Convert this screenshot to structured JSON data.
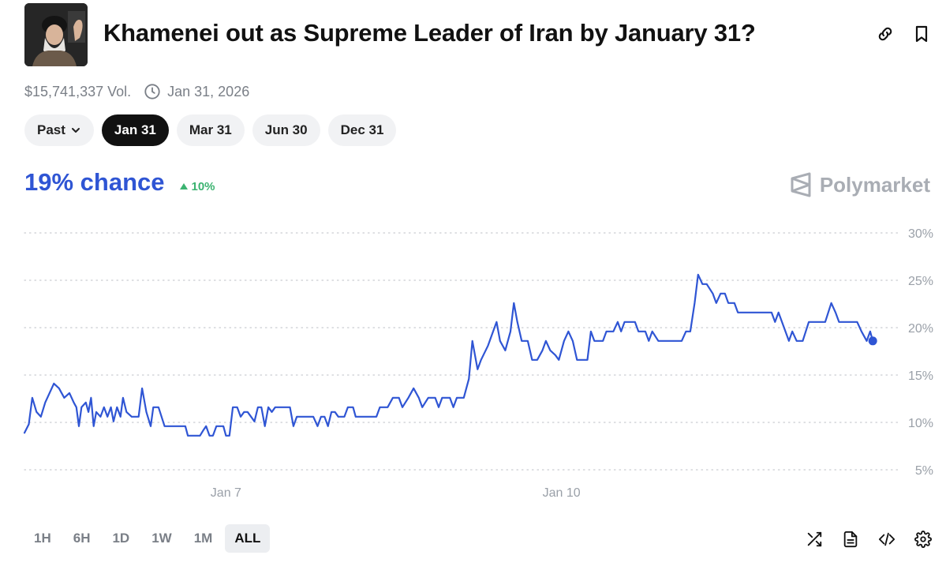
{
  "header": {
    "title": "Khamenei out as Supreme Leader of Iran by January 31?",
    "avatar_icon": "portrait-avatar"
  },
  "meta": {
    "volume": "$15,741,337 Vol.",
    "end_date": "Jan 31, 2026"
  },
  "date_pills": {
    "past_label": "Past",
    "items": [
      "Jan 31",
      "Mar 31",
      "Jun 30",
      "Dec 31"
    ],
    "active": "Jan 31"
  },
  "outcome": {
    "chance": "19% chance",
    "change": "10%",
    "change_direction": "up"
  },
  "brand": {
    "name": "Polymarket"
  },
  "colors": {
    "line": "#2f55d4",
    "positive": "#3cb371",
    "muted": "#7a7f87"
  },
  "time_ranges": {
    "items": [
      "1H",
      "6H",
      "1D",
      "1W",
      "1M",
      "ALL"
    ],
    "active": "ALL"
  },
  "tool_icons": [
    "shuffle-icon",
    "document-icon",
    "code-icon",
    "gear-icon"
  ],
  "chart_data": {
    "type": "line",
    "y_ticks": [
      "30%",
      "25%",
      "20%",
      "15%",
      "10%",
      "5%"
    ],
    "y_tick_values": [
      30,
      25,
      20,
      15,
      10,
      5
    ],
    "ylim": [
      5,
      30
    ],
    "xlim": [
      0,
      100
    ],
    "x_ticks": [
      {
        "x": 23.3,
        "label": "Jan 7"
      },
      {
        "x": 62.1,
        "label": "Jan 10"
      }
    ],
    "grid": true,
    "series": [
      {
        "values": [
          [
            0,
            8.9
          ],
          [
            0.5,
            9.8
          ],
          [
            0.9,
            12.6
          ],
          [
            1.4,
            11.1
          ],
          [
            1.9,
            10.6
          ],
          [
            2.4,
            12.1
          ],
          [
            2.9,
            13.1
          ],
          [
            3.4,
            14.1
          ],
          [
            4.0,
            13.6
          ],
          [
            4.6,
            12.6
          ],
          [
            5.2,
            13.1
          ],
          [
            5.7,
            12.1
          ],
          [
            6.0,
            11.6
          ],
          [
            6.3,
            9.6
          ],
          [
            6.6,
            11.6
          ],
          [
            7.1,
            12.1
          ],
          [
            7.4,
            11.1
          ],
          [
            7.7,
            12.6
          ],
          [
            8.0,
            9.6
          ],
          [
            8.3,
            11.1
          ],
          [
            8.8,
            10.6
          ],
          [
            9.2,
            11.6
          ],
          [
            9.6,
            10.6
          ],
          [
            10.0,
            11.6
          ],
          [
            10.3,
            10.1
          ],
          [
            10.7,
            11.6
          ],
          [
            11.1,
            10.6
          ],
          [
            11.4,
            12.6
          ],
          [
            11.8,
            11.1
          ],
          [
            12.4,
            10.6
          ],
          [
            13.2,
            10.6
          ],
          [
            13.6,
            13.6
          ],
          [
            14.1,
            11.1
          ],
          [
            14.6,
            9.6
          ],
          [
            14.9,
            11.6
          ],
          [
            15.5,
            11.6
          ],
          [
            16.2,
            9.6
          ],
          [
            17.2,
            9.6
          ],
          [
            18.6,
            9.6
          ],
          [
            18.9,
            8.6
          ],
          [
            19.6,
            8.6
          ],
          [
            20.3,
            8.6
          ],
          [
            20.7,
            9.2
          ],
          [
            21.0,
            9.6
          ],
          [
            21.4,
            8.6
          ],
          [
            21.8,
            8.6
          ],
          [
            22.2,
            9.6
          ],
          [
            23.0,
            9.6
          ],
          [
            23.3,
            8.6
          ],
          [
            23.7,
            8.6
          ],
          [
            24.1,
            11.6
          ],
          [
            24.6,
            11.6
          ],
          [
            25.0,
            10.6
          ],
          [
            25.4,
            11.1
          ],
          [
            25.8,
            11.1
          ],
          [
            26.2,
            10.6
          ],
          [
            26.6,
            10.1
          ],
          [
            27.0,
            11.6
          ],
          [
            27.4,
            11.6
          ],
          [
            27.8,
            9.6
          ],
          [
            28.2,
            11.6
          ],
          [
            28.6,
            11.1
          ],
          [
            29.0,
            11.6
          ],
          [
            30.7,
            11.6
          ],
          [
            31.1,
            9.6
          ],
          [
            31.5,
            10.6
          ],
          [
            33.4,
            10.6
          ],
          [
            33.9,
            9.6
          ],
          [
            34.3,
            10.6
          ],
          [
            34.7,
            10.6
          ],
          [
            35.1,
            9.6
          ],
          [
            35.5,
            11.1
          ],
          [
            35.9,
            11.1
          ],
          [
            36.3,
            10.6
          ],
          [
            37.0,
            10.6
          ],
          [
            37.4,
            11.6
          ],
          [
            38.0,
            11.6
          ],
          [
            38.3,
            10.6
          ],
          [
            39.0,
            10.6
          ],
          [
            40.7,
            10.6
          ],
          [
            41.1,
            11.6
          ],
          [
            42.0,
            11.6
          ],
          [
            42.6,
            12.6
          ],
          [
            43.3,
            12.6
          ],
          [
            43.7,
            11.6
          ],
          [
            44.4,
            12.6
          ],
          [
            45.0,
            13.6
          ],
          [
            45.6,
            12.6
          ],
          [
            46.0,
            11.6
          ],
          [
            46.7,
            12.6
          ],
          [
            47.5,
            12.6
          ],
          [
            47.9,
            11.6
          ],
          [
            48.3,
            12.6
          ],
          [
            49.2,
            12.6
          ],
          [
            49.6,
            11.6
          ],
          [
            50.0,
            12.6
          ],
          [
            50.8,
            12.6
          ],
          [
            51.4,
            14.6
          ],
          [
            51.8,
            18.6
          ],
          [
            52.4,
            15.6
          ],
          [
            52.8,
            16.6
          ],
          [
            53.6,
            18.1
          ],
          [
            54.2,
            19.6
          ],
          [
            54.6,
            20.6
          ],
          [
            55.0,
            18.6
          ],
          [
            55.6,
            17.6
          ],
          [
            56.2,
            19.6
          ],
          [
            56.6,
            22.6
          ],
          [
            57.0,
            20.6
          ],
          [
            57.5,
            18.6
          ],
          [
            58.2,
            18.6
          ],
          [
            58.7,
            16.6
          ],
          [
            59.3,
            16.6
          ],
          [
            59.9,
            17.6
          ],
          [
            60.3,
            18.6
          ],
          [
            60.8,
            17.6
          ],
          [
            61.4,
            17.1
          ],
          [
            61.8,
            16.6
          ],
          [
            62.4,
            18.6
          ],
          [
            62.9,
            19.6
          ],
          [
            63.4,
            18.6
          ],
          [
            63.9,
            16.6
          ],
          [
            64.5,
            16.6
          ],
          [
            65.1,
            16.6
          ],
          [
            65.5,
            19.6
          ],
          [
            65.9,
            18.6
          ],
          [
            66.9,
            18.6
          ],
          [
            67.3,
            19.6
          ],
          [
            68.1,
            19.6
          ],
          [
            68.6,
            20.6
          ],
          [
            69.0,
            19.6
          ],
          [
            69.4,
            20.6
          ],
          [
            70.6,
            20.6
          ],
          [
            71.0,
            19.6
          ],
          [
            71.8,
            19.6
          ],
          [
            72.2,
            18.6
          ],
          [
            72.6,
            19.6
          ],
          [
            73.3,
            18.6
          ],
          [
            76.0,
            18.6
          ],
          [
            76.5,
            19.6
          ],
          [
            77.0,
            19.6
          ],
          [
            77.5,
            22.6
          ],
          [
            77.9,
            25.6
          ],
          [
            78.4,
            24.6
          ],
          [
            78.9,
            24.6
          ],
          [
            79.6,
            23.6
          ],
          [
            80.0,
            22.6
          ],
          [
            80.5,
            23.6
          ],
          [
            81.0,
            23.6
          ],
          [
            81.4,
            22.6
          ],
          [
            82.1,
            22.6
          ],
          [
            82.5,
            21.6
          ],
          [
            86.4,
            21.6
          ],
          [
            86.8,
            20.6
          ],
          [
            87.2,
            21.6
          ],
          [
            87.6,
            20.6
          ],
          [
            88.0,
            19.6
          ],
          [
            88.4,
            18.6
          ],
          [
            88.8,
            19.6
          ],
          [
            89.3,
            18.6
          ],
          [
            90.0,
            18.6
          ],
          [
            90.7,
            20.6
          ],
          [
            92.6,
            20.6
          ],
          [
            93.3,
            22.6
          ],
          [
            93.8,
            21.6
          ],
          [
            94.2,
            20.6
          ],
          [
            96.3,
            20.6
          ],
          [
            96.8,
            19.6
          ],
          [
            97.4,
            18.6
          ],
          [
            97.8,
            19.6
          ],
          [
            98.1,
            18.6
          ]
        ]
      }
    ],
    "last_point": {
      "x": 98.1,
      "y": 18.6
    }
  }
}
